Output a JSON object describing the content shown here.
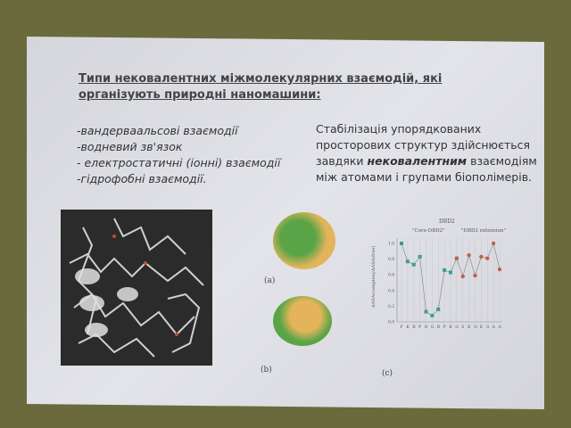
{
  "slide": {
    "title": "Типи нековалентних міжмолекулярних взаємодій, які організують природні наномашини:",
    "list_items": [
      "-вандерваальсові взаємодії",
      "-водневий зв'язок",
      "- електростатичні (іонні) взаємодії",
      "-гідрофобні взаємодії."
    ],
    "paragraph": {
      "before": "Стабілізація упорядкованих просторових структур здійснюється завдяки ",
      "bold": "нековалентним",
      "after": " взаємодіям між атомами і групами біополімерів."
    },
    "captions": {
      "a": "(a)",
      "b": "(b)",
      "c": "(c)"
    }
  },
  "chart_data": {
    "type": "line",
    "title": "DBD2",
    "annotations": [
      "\"Core-DBD2\"",
      "\"DBD2 extension\""
    ],
    "ylabel": "ΔASA(complex)/ΔASA(free)",
    "ylim": [
      0,
      1.1
    ],
    "yticks": [
      "0.0",
      "0.2",
      "0.4",
      "0.6",
      "0.8",
      "1.0"
    ],
    "categories": [
      "F",
      "K",
      "R",
      "P",
      "R",
      "G",
      "R",
      "P",
      "K",
      "G",
      "S",
      "K",
      "N",
      "K",
      "G",
      "A",
      "A"
    ],
    "series": [
      {
        "color": "#3a9e96",
        "values": [
          1.0,
          0.77,
          0.73,
          0.83,
          0.13,
          0.08,
          0.16,
          0.66,
          0.63,
          0.81,
          null,
          null,
          null,
          null,
          null,
          null,
          null
        ]
      },
      {
        "color": "#c0624a",
        "values": [
          null,
          null,
          null,
          null,
          null,
          null,
          null,
          null,
          null,
          0.81,
          0.58,
          0.85,
          0.59,
          0.83,
          0.81,
          1.0,
          0.67
        ]
      }
    ],
    "grid": true
  }
}
